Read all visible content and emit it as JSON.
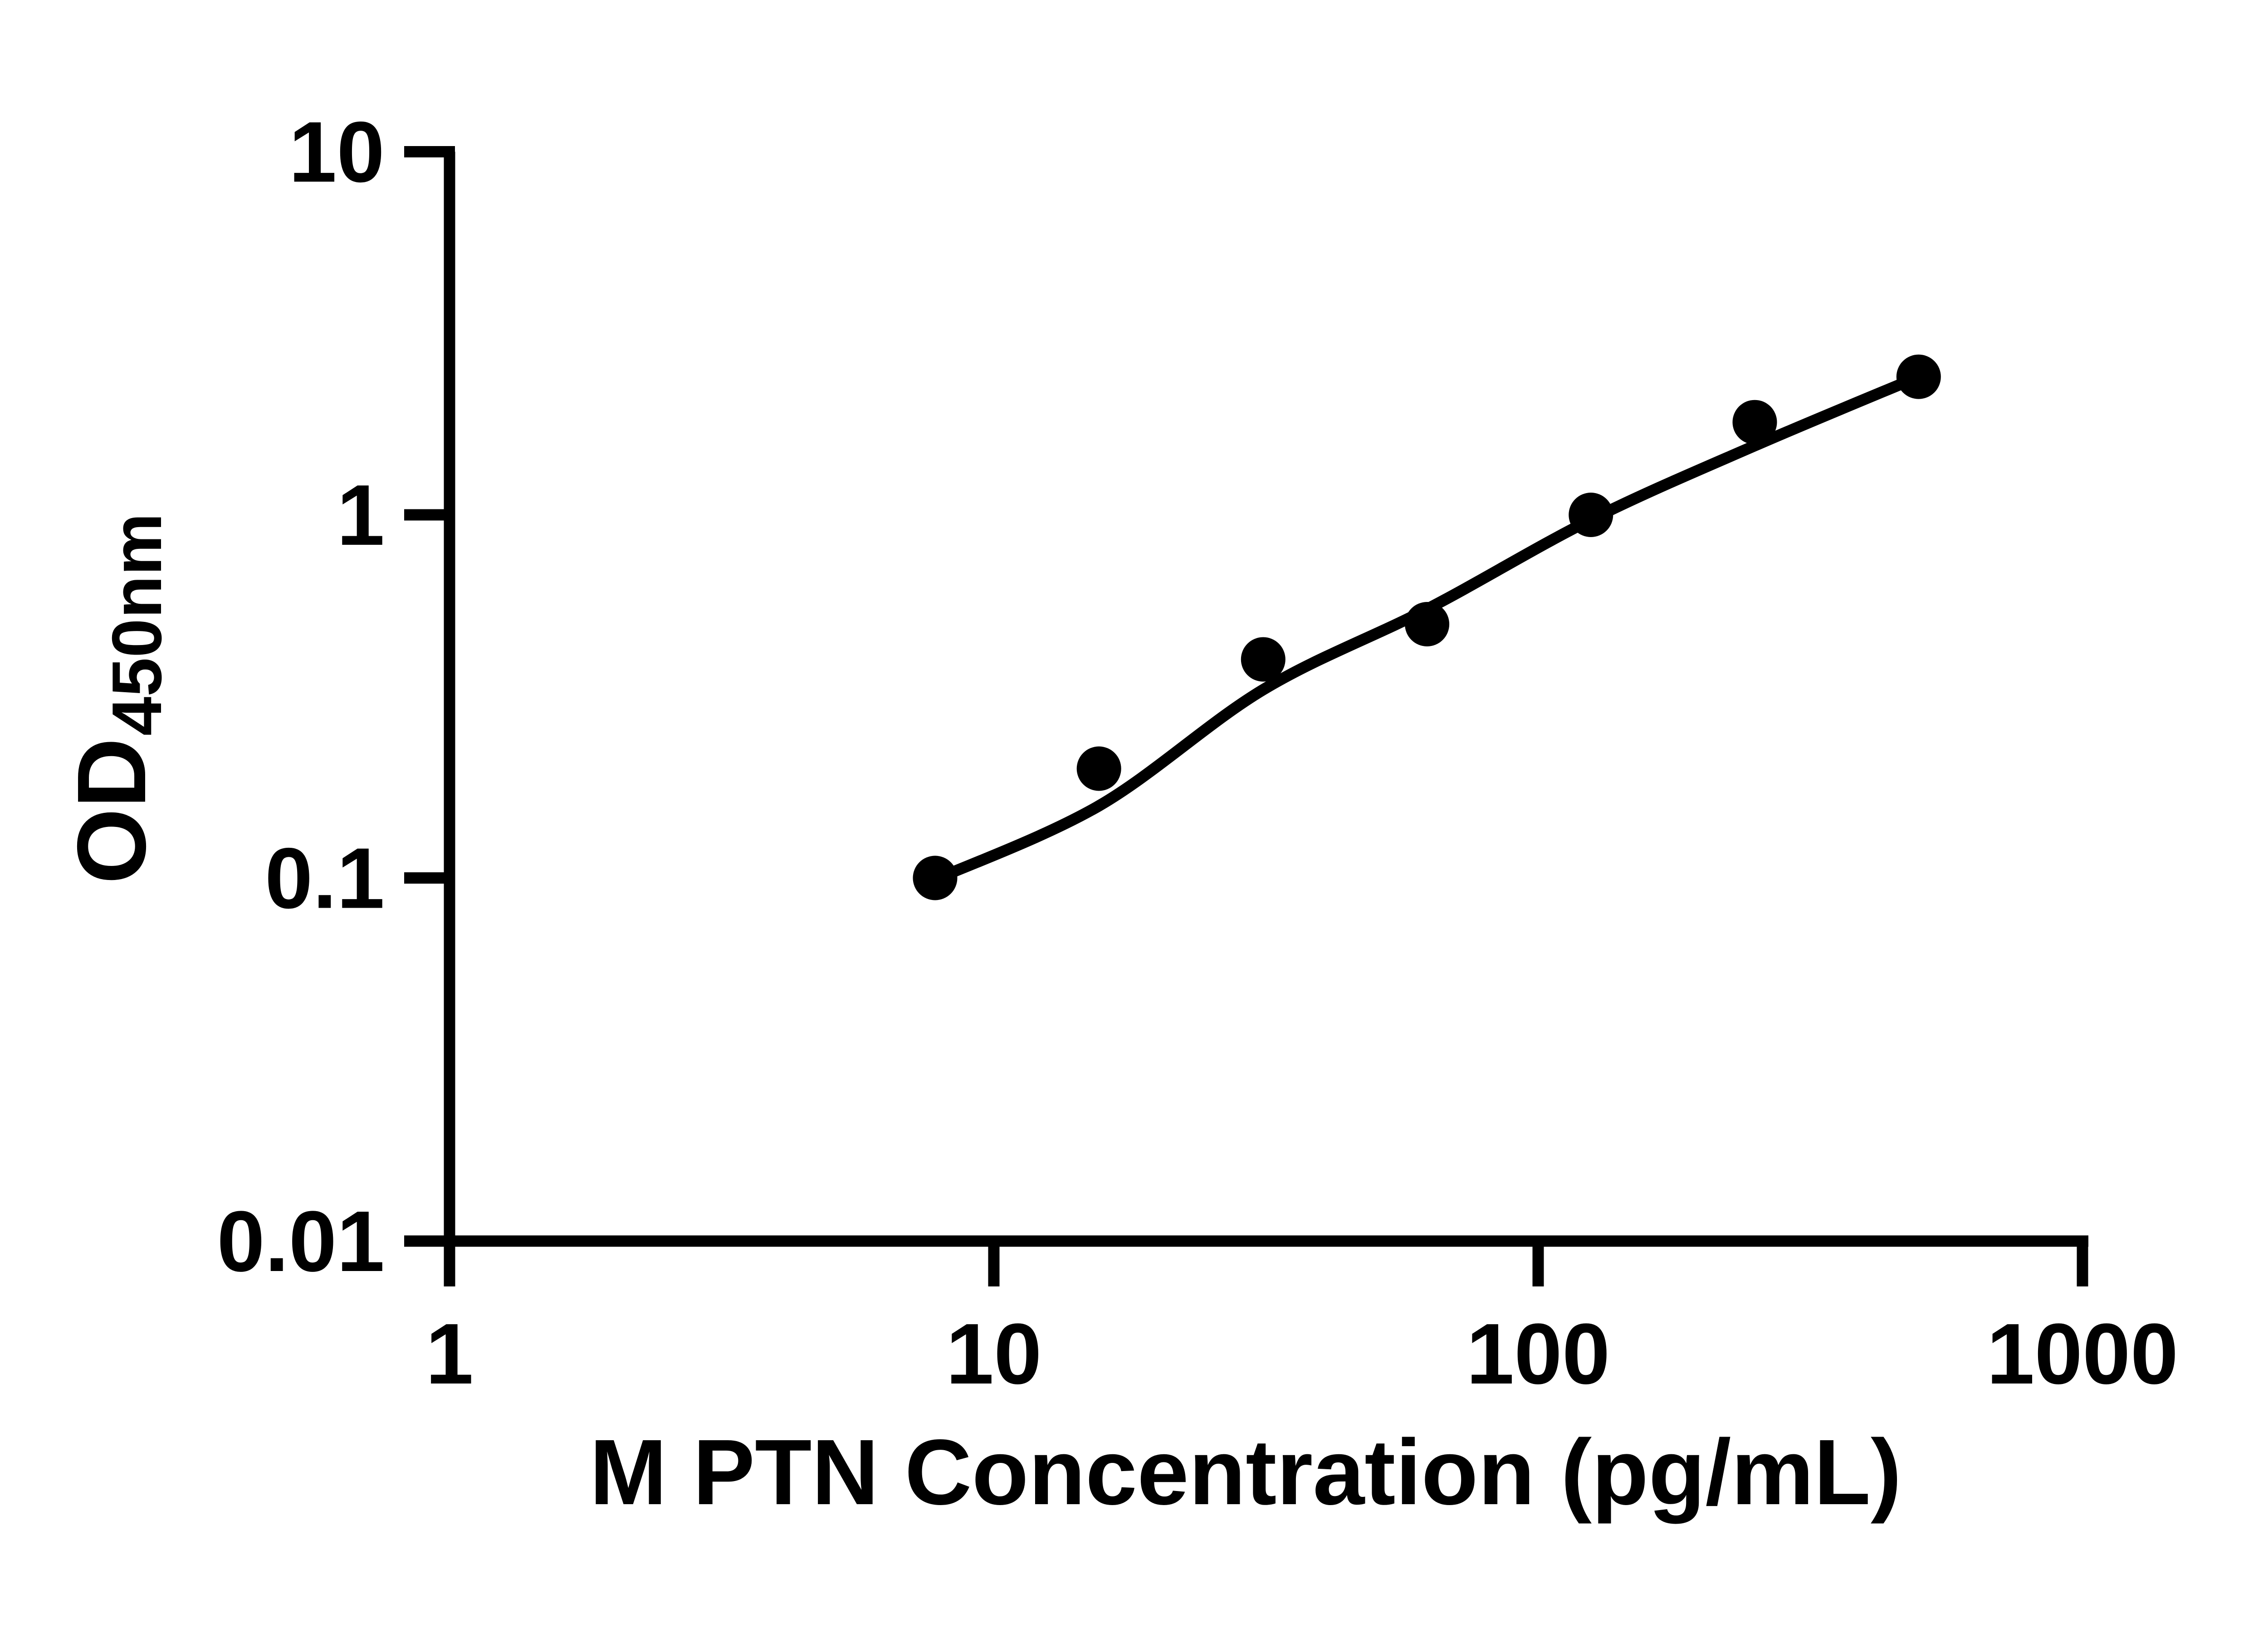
{
  "figure": {
    "background": "#ffffff",
    "foreground": "#000000"
  },
  "chart_data": {
    "type": "scatter",
    "title": "",
    "xlabel": "M PTN Concentration (pg/mL)",
    "ylabel_main": "OD",
    "ylabel_sub": "450nm",
    "x_scale": "log",
    "y_scale": "log",
    "xlim": [
      1,
      1000
    ],
    "ylim": [
      0.01,
      10
    ],
    "grid": false,
    "legend": false,
    "marker_color": "#000000",
    "line_color": "#000000",
    "x_ticks": [
      {
        "value": 1,
        "label": "1"
      },
      {
        "value": 10,
        "label": "10"
      },
      {
        "value": 100,
        "label": "100"
      },
      {
        "value": 1000,
        "label": "1000"
      }
    ],
    "y_ticks": [
      {
        "value": 0.01,
        "label": "0.01"
      },
      {
        "value": 0.1,
        "label": "0.1"
      },
      {
        "value": 1,
        "label": "1"
      },
      {
        "value": 10,
        "label": "10"
      }
    ],
    "points": [
      {
        "x": 7.8,
        "od": 0.1
      },
      {
        "x": 15.6,
        "od": 0.2
      },
      {
        "x": 31.25,
        "od": 0.4
      },
      {
        "x": 62.5,
        "od": 0.5
      },
      {
        "x": 125,
        "od": 1.0
      },
      {
        "x": 250,
        "od": 1.8
      },
      {
        "x": 500,
        "od": 2.4
      }
    ],
    "fit_curve": {
      "anchors": [
        {
          "x": 7.8,
          "od": 0.099
        },
        {
          "x": 15.6,
          "od": 0.158
        },
        {
          "x": 31.25,
          "od": 0.33
        },
        {
          "x": 62.5,
          "od": 0.55
        },
        {
          "x": 125,
          "od": 0.97
        },
        {
          "x": 250,
          "od": 1.55
        },
        {
          "x": 500,
          "od": 2.4
        }
      ]
    }
  }
}
